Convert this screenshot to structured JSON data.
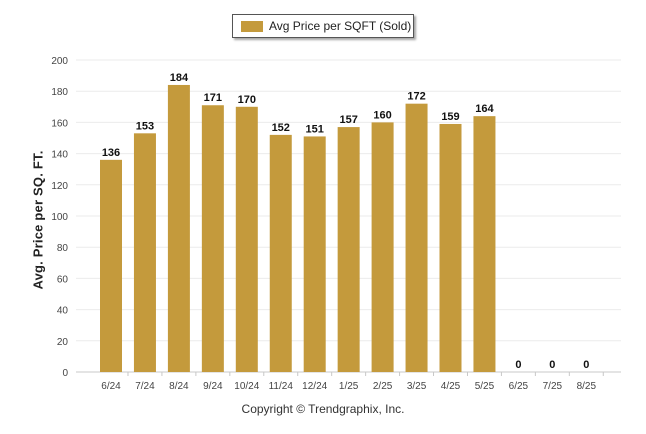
{
  "legend": {
    "label": "Avg Price per SQFT (Sold)"
  },
  "footer": {
    "copyright": "Copyright © Trendgraphix, Inc."
  },
  "chart_data": {
    "type": "bar",
    "title": "",
    "xlabel": "",
    "ylabel": "Avg. Price per SQ. FT.",
    "ylim": [
      0,
      200
    ],
    "yticks": [
      0,
      20,
      40,
      60,
      80,
      100,
      120,
      140,
      160,
      180,
      200
    ],
    "grid": true,
    "legend_position": "top-center",
    "categories": [
      "6/24",
      "7/24",
      "8/24",
      "9/24",
      "10/24",
      "11/24",
      "12/24",
      "1/25",
      "2/25",
      "3/25",
      "4/25",
      "5/25",
      "6/25",
      "7/25",
      "8/25"
    ],
    "series": [
      {
        "name": "Avg Price per SQFT (Sold)",
        "color": "#C49A3C",
        "values": [
          136,
          153,
          184,
          171,
          170,
          152,
          151,
          157,
          160,
          172,
          159,
          164,
          0,
          0,
          0
        ]
      }
    ]
  }
}
